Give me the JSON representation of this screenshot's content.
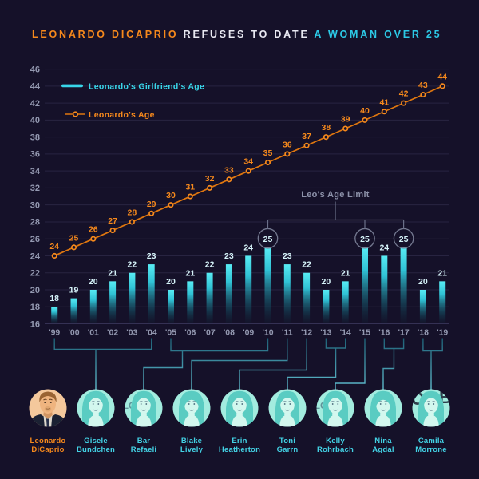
{
  "colors": {
    "background": "#151129",
    "orange": "#f6891c",
    "orange_line": "#e0770f",
    "cyan": "#38d6e9",
    "cyan_title": "#2cc9e6",
    "bar_top": "#55eaf2",
    "bar_mid": "#2ab9cd",
    "bar_label": "#d6f3f9",
    "axis_text": "#9499b1",
    "grid_line": "#282441",
    "annotation_gray": "#8d92aa",
    "bracket_gray": "#6b7089",
    "connector_dark": "#1a5a70",
    "connector_light": "#65c5d6",
    "name_cyan": "#43d2e5"
  },
  "title": {
    "part1": "LEONARDO DICAPRIO",
    "part2": " REFUSES TO DATE ",
    "part3": "A WOMAN OVER 25"
  },
  "legend": {
    "girlfriend_label": "Leonardo's Girlfriend's Age",
    "leo_label": "Leonardo's Age"
  },
  "annotation": {
    "label": "Leo's Age Limit",
    "circled_years": [
      "'10",
      "'15",
      "'17"
    ]
  },
  "chart_data": {
    "type": "bar",
    "title": "Leonardo DiCaprio refuses to date a woman over 25",
    "categories": [
      "'99",
      "'00",
      "'01",
      "'02",
      "'03",
      "'04",
      "'05",
      "'06",
      "'07",
      "'08",
      "'09",
      "'10",
      "'11",
      "'12",
      "'13",
      "'14",
      "'15",
      "'16",
      "'17",
      "'18",
      "'19"
    ],
    "series": [
      {
        "name": "Leonardo's Girlfriend's Age",
        "type": "bar",
        "values": [
          18,
          19,
          20,
          21,
          22,
          23,
          20,
          21,
          22,
          23,
          24,
          25,
          23,
          22,
          20,
          21,
          25,
          24,
          25,
          20,
          21
        ]
      },
      {
        "name": "Leonardo's Age",
        "type": "line",
        "values": [
          24,
          25,
          26,
          27,
          28,
          29,
          30,
          31,
          32,
          33,
          34,
          35,
          36,
          37,
          38,
          39,
          40,
          41,
          42,
          43,
          44
        ]
      }
    ],
    "ylim": [
      16,
      46
    ],
    "ytick_step": 2,
    "grid": true,
    "legend_position": "top-left"
  },
  "people": [
    {
      "line1": "Leonardo",
      "line2": "DiCaprio",
      "accent": "orange",
      "years": [],
      "style": "leo"
    },
    {
      "line1": "Gisele",
      "line2": "Bundchen",
      "accent": "cyan",
      "years": [
        "'99",
        "'04"
      ],
      "style": "f1"
    },
    {
      "line1": "Bar",
      "line2": "Refaeli",
      "accent": "cyan",
      "years": [
        "'05",
        "'10"
      ],
      "style": "f2"
    },
    {
      "line1": "Blake",
      "line2": "Lively",
      "accent": "cyan",
      "years": [
        "'11"
      ],
      "style": "f3"
    },
    {
      "line1": "Erin",
      "line2": "Heatherton",
      "accent": "cyan",
      "years": [
        "'12"
      ],
      "style": "f1"
    },
    {
      "line1": "Toni",
      "line2": "Garrn",
      "accent": "cyan",
      "years": [
        "'13",
        "'14"
      ],
      "style": "f4"
    },
    {
      "line1": "Kelly",
      "line2": "Rohrbach",
      "accent": "cyan",
      "years": [
        "'15"
      ],
      "style": "f2"
    },
    {
      "line1": "Nina",
      "line2": "Agdal",
      "accent": "cyan",
      "years": [
        "'16",
        "'17"
      ],
      "style": "f3"
    },
    {
      "line1": "Camila",
      "line2": "Morrone",
      "accent": "cyan",
      "years": [
        "'18",
        "'19"
      ],
      "style": "f5"
    }
  ]
}
